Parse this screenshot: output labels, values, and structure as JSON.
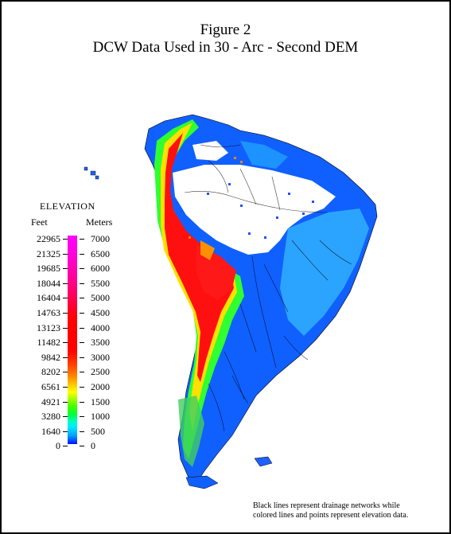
{
  "title": {
    "line1": "Figure 2",
    "line2": "DCW Data Used in 30 - Arc - Second DEM"
  },
  "legend": {
    "title": "ELEVATION",
    "feet_header": "Feet",
    "meters_header": "Meters",
    "ticks": [
      {
        "feet": "22965",
        "meters": "7000"
      },
      {
        "feet": "21325",
        "meters": "6500"
      },
      {
        "feet": "19685",
        "meters": "6000"
      },
      {
        "feet": "18044",
        "meters": "5500"
      },
      {
        "feet": "16404",
        "meters": "5000"
      },
      {
        "feet": "14763",
        "meters": "4500"
      },
      {
        "feet": "13123",
        "meters": "4000"
      },
      {
        "feet": "11482",
        "meters": "3500"
      },
      {
        "feet": "9842",
        "meters": "3000"
      },
      {
        "feet": "8202",
        "meters": "2500"
      },
      {
        "feet": "6561",
        "meters": "2000"
      },
      {
        "feet": "4921",
        "meters": "1500"
      },
      {
        "feet": "3280",
        "meters": "1000"
      },
      {
        "feet": "1640",
        "meters": "500"
      },
      {
        "feet": "0",
        "meters": "0"
      }
    ]
  },
  "caption": {
    "line1": "Black lines represent drainage networks while",
    "line2": "colored lines and points represent elevation data."
  },
  "colors": {
    "low": "#0010ff",
    "mid_low": "#00ff40",
    "mid": "#ffff00",
    "high": "#ff0000",
    "peak": "#ff00ff",
    "lowland": "#0080ff"
  }
}
